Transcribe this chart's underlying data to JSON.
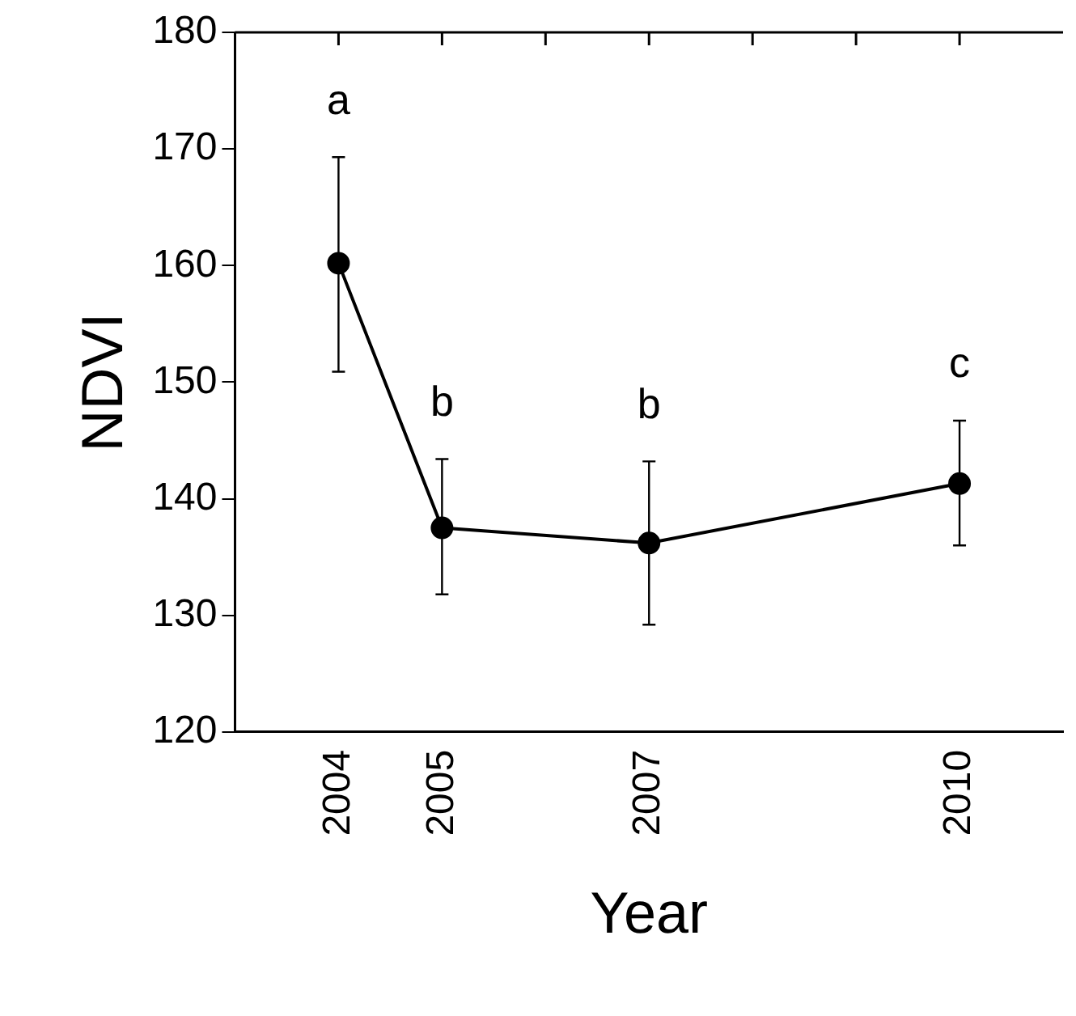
{
  "chart_data": {
    "type": "line",
    "xlabel": "Year",
    "ylabel": "NDVI",
    "x": [
      2004,
      2005,
      2007,
      2010
    ],
    "series": [
      {
        "color": "#000000",
        "values": [
          160.2,
          137.5,
          136.2,
          141.3
        ],
        "errors": [
          [
            150.9,
            169.3
          ],
          [
            131.8,
            143.4
          ],
          [
            129.2,
            143.2
          ],
          [
            136.0,
            146.7
          ]
        ]
      }
    ],
    "xlim": [
      2003,
      2011
    ],
    "xticks": [
      2004,
      2005,
      {
        "value": 2006,
        "label": null
      },
      2007,
      {
        "value": 2008,
        "label": null
      },
      {
        "value": 2009,
        "label": null
      },
      2010
    ],
    "ylim": [
      120,
      180
    ],
    "yticks": [
      120,
      130,
      140,
      150,
      160,
      170,
      180
    ],
    "annotations": [
      "a",
      "b",
      "b",
      "c"
    ],
    "grid": false,
    "legend": false,
    "marker": "circle",
    "line_style": "solid"
  }
}
